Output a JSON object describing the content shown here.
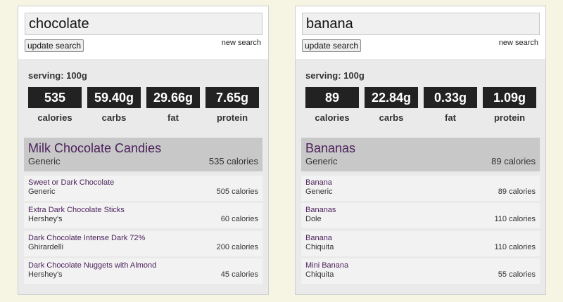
{
  "panels": [
    {
      "search_value": "chocolate",
      "update_label": "update search",
      "new_search_label": "new search",
      "serving": "serving: 100g",
      "stats": [
        {
          "value": "535",
          "label": "calories"
        },
        {
          "value": "59.40g",
          "label": "carbs"
        },
        {
          "value": "29.66g",
          "label": "fat"
        },
        {
          "value": "7.65g",
          "label": "protein"
        }
      ],
      "selected": {
        "name": "Milk Chocolate Candies",
        "brand": "Generic",
        "calories": "535 calories"
      },
      "results": [
        {
          "name": "Sweet or Dark Chocolate",
          "brand": "Generic",
          "calories": "505 calories"
        },
        {
          "name": "Extra Dark Chocolate Sticks",
          "brand": "Hershey's",
          "calories": "60 calories"
        },
        {
          "name": "Dark Chocolate Intense Dark 72%",
          "brand": "Ghirardelli",
          "calories": "200 calories"
        },
        {
          "name": "Dark Chocolate Nuggets with Almond",
          "brand": "Hershey's",
          "calories": "45 calories"
        }
      ]
    },
    {
      "search_value": "banana",
      "update_label": "update search",
      "new_search_label": "new search",
      "serving": "serving: 100g",
      "stats": [
        {
          "value": "89",
          "label": "calories"
        },
        {
          "value": "22.84g",
          "label": "carbs"
        },
        {
          "value": "0.33g",
          "label": "fat"
        },
        {
          "value": "1.09g",
          "label": "protein"
        }
      ],
      "selected": {
        "name": "Bananas",
        "brand": "Generic",
        "calories": "89 calories"
      },
      "results": [
        {
          "name": "Banana",
          "brand": "Generic",
          "calories": "89 calories"
        },
        {
          "name": "Bananas",
          "brand": "Dole",
          "calories": "110 calories"
        },
        {
          "name": "Banana",
          "brand": "Chiquita",
          "calories": "110 calories"
        },
        {
          "name": "Mini Banana",
          "brand": "Chiquita",
          "calories": "55 calories"
        }
      ]
    }
  ]
}
